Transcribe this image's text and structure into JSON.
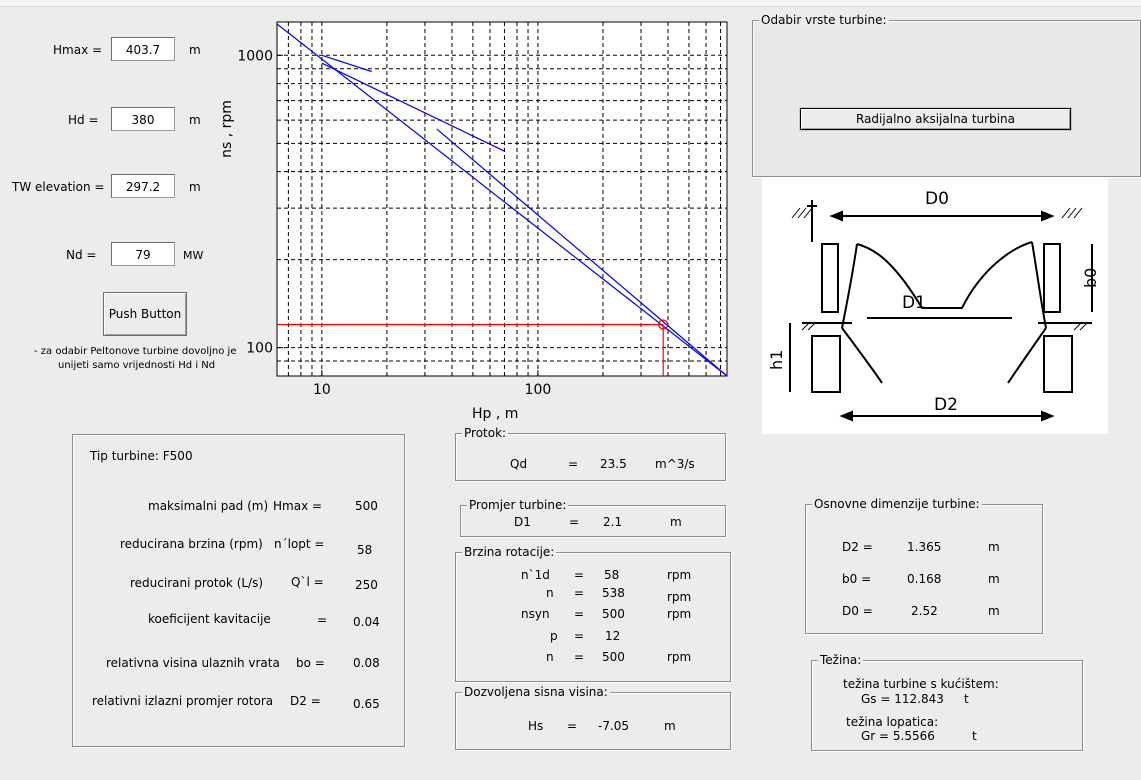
{
  "inputs": {
    "hmax": {
      "label": "Hmax =",
      "value": "403.7",
      "unit": "m"
    },
    "hd": {
      "label": "Hd =",
      "value": "380",
      "unit": "m"
    },
    "tw": {
      "label": "TW elevation =",
      "value": "297.2",
      "unit": "m"
    },
    "nd": {
      "label": "Nd =",
      "value": "79",
      "unit": "MW"
    }
  },
  "push_button": {
    "label": "Push Button"
  },
  "note": {
    "line1": "- za odabir Peltonove turbine dovoljno je",
    "line2": "unijeti samo vrijednosti Hd i Nd"
  },
  "chart_data": {
    "type": "line",
    "xlabel": "Hp , m",
    "ylabel": "ns , rpm",
    "x_scale": "log",
    "y_scale": "log",
    "xlim": [
      6.2,
      750
    ],
    "ylim": [
      80,
      1300
    ],
    "x_ticks": [
      10,
      100
    ],
    "y_ticks": [
      100,
      1000
    ],
    "x_tick_labels": [
      "10",
      "100"
    ],
    "y_tick_labels": [
      "100",
      "1000"
    ],
    "grid": true,
    "series": [
      {
        "x": [
          6.2,
          750
        ],
        "y": [
          1280,
          80
        ]
      },
      {
        "x": [
          10,
          17
        ],
        "y": [
          1000,
          880
        ]
      },
      {
        "x": [
          10,
          70
        ],
        "y": [
          940,
          470
        ]
      },
      {
        "x": [
          34,
          750
        ],
        "y": [
          560,
          80
        ]
      }
    ],
    "marker": {
      "x": 380,
      "y": 120
    },
    "marker_lines": {
      "h_y": 120,
      "v_x": 380
    },
    "colors": {
      "curve": "#0000ff",
      "marker": "#ff0000"
    }
  },
  "turbine_type_panel": {
    "title": "Odabir vrste turbine:",
    "button": "Radijalno aksijalna turbina"
  },
  "diagram": {
    "labels": {
      "d0": "D0",
      "d1": "D1",
      "d2": "D2",
      "b0": "b0",
      "h1": "h1"
    }
  },
  "tip": {
    "title": "Tip turbine: F500",
    "rows": [
      {
        "label": "maksimalni pad (m)",
        "sym": "Hmax =",
        "value": "500"
      },
      {
        "label": "reducirana brzina (rpm)",
        "sym": "n´lopt =",
        "value": "58"
      },
      {
        "label": "reducirani protok (L/s)",
        "sym": "Q`l =",
        "value": "250"
      },
      {
        "label": "koeficijent kavitacije",
        "sym": "=",
        "value": "0.04"
      },
      {
        "label": "relativna visina ulaznih vrata",
        "sym": "bo =",
        "value": "0.08"
      },
      {
        "label": "relativni izlazni promjer rotora",
        "sym": "D2 =",
        "value": "0.65"
      }
    ]
  },
  "protok": {
    "title": "Protok:",
    "name": "Qd",
    "eq": "=",
    "value": "23.5",
    "unit": "m^3/s"
  },
  "promjer": {
    "title": "Promjer turbine:",
    "name": "D1",
    "eq": "=",
    "value": "2.1",
    "unit": "m"
  },
  "brzina": {
    "title": "Brzina rotacije:",
    "rows": [
      {
        "name": "n`1d",
        "eq": "=",
        "value": "58",
        "unit": "rpm"
      },
      {
        "name": "n",
        "eq": "=",
        "value": "538",
        "unit": "rpm"
      },
      {
        "name": "nsyn",
        "eq": "=",
        "value": "500",
        "unit": "rpm"
      },
      {
        "name": "p",
        "eq": "=",
        "value": "12",
        "unit": ""
      },
      {
        "name": "n",
        "eq": "=",
        "value": "500",
        "unit": "rpm"
      }
    ]
  },
  "sisna": {
    "title": "Dozvoljena sisna visina:",
    "name": "Hs",
    "eq": "=",
    "value": "-7.05",
    "unit": "m"
  },
  "dim": {
    "title": "Osnovne dimenzije turbine:",
    "rows": [
      {
        "name": "D2 =",
        "value": "1.365",
        "unit": "m"
      },
      {
        "name": "b0 =",
        "value": "0.168",
        "unit": "m"
      },
      {
        "name": "D0 =",
        "value": "2.52",
        "unit": "m"
      }
    ]
  },
  "tezina": {
    "title": "Težina:",
    "gs_label": "težina turbine s kućištem:",
    "gs": "Gs = 112.843",
    "gs_unit": "t",
    "gr_label": "težina lopatica:",
    "gr": "Gr = 5.5566",
    "gr_unit": "t"
  }
}
